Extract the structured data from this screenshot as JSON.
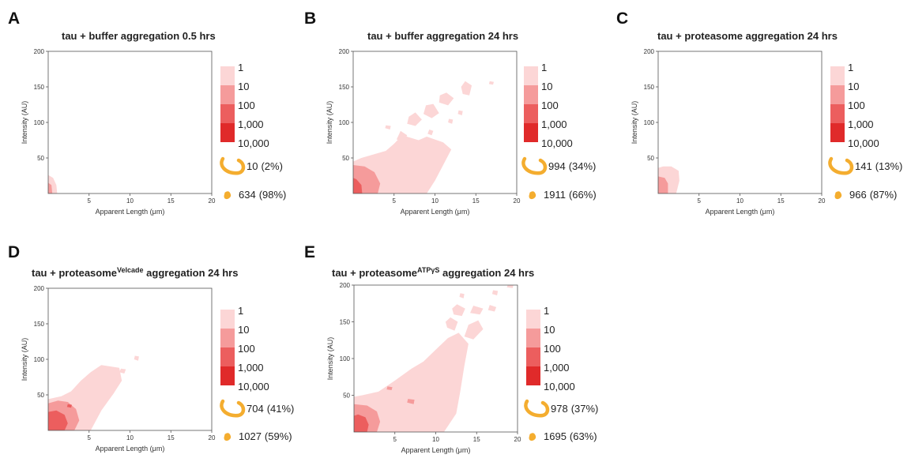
{
  "colors": {
    "bin_colors": [
      "#fcd6d6",
      "#f59b9b",
      "#ec5e5e",
      "#e02a2a"
    ],
    "fibril_icon": "#f4ad2f",
    "axis": "#555555"
  },
  "legend_labels": [
    "1",
    "10",
    "100",
    "1,000",
    "10,000"
  ],
  "fibril_icon_names": [
    "fibril-long-icon",
    "fibril-short-icon"
  ],
  "chart_data": [
    {
      "letter": "A",
      "title": "tau + buffer aggregation 0.5 hrs",
      "title_sup": "",
      "title_suffix": "",
      "type": "heatmap",
      "xlabel": "Apparent Length (μm)",
      "ylabel": "Intensity (AU)",
      "xlim": [
        0,
        20
      ],
      "ylim": [
        0,
        200
      ],
      "xticks": [
        "5",
        "10",
        "15",
        "20"
      ],
      "yticks": [
        "50",
        "100",
        "150",
        "200"
      ],
      "density_regions": [
        {
          "level": 1,
          "points": [
            [
              0,
              0
            ],
            [
              1.1,
              0
            ],
            [
              1.0,
              12
            ],
            [
              0.6,
              22
            ],
            [
              0,
              26
            ]
          ]
        },
        {
          "level": 2,
          "points": [
            [
              0,
              0
            ],
            [
              0.5,
              0
            ],
            [
              0.4,
              12
            ],
            [
              0,
              15
            ]
          ]
        }
      ],
      "long_fibrils": {
        "count": "10",
        "percent": "(2%)"
      },
      "short_fibrils": {
        "count": "634",
        "percent": "(98%)"
      }
    },
    {
      "letter": "B",
      "title": "tau + buffer aggregation 24 hrs",
      "title_sup": "",
      "title_suffix": "",
      "type": "heatmap",
      "xlabel": "Apparent Length (μm)",
      "ylabel": "Intensity (AU)",
      "xlim": [
        0,
        20
      ],
      "ylim": [
        0,
        200
      ],
      "xticks": [
        "5",
        "10",
        "15",
        "20"
      ],
      "yticks": [
        "50",
        "100",
        "150",
        "200"
      ],
      "density_regions": [
        {
          "level": 1,
          "points": [
            [
              0,
              0
            ],
            [
              9,
              0
            ],
            [
              10,
              18
            ],
            [
              11,
              40
            ],
            [
              12,
              62
            ],
            [
              11,
              72
            ],
            [
              9,
              80
            ],
            [
              8,
              75
            ],
            [
              6,
              82
            ],
            [
              5,
              70
            ],
            [
              4,
              60
            ],
            [
              2.5,
              55
            ],
            [
              1,
              50
            ],
            [
              0,
              45
            ]
          ]
        },
        {
          "level": 1,
          "points": [
            [
              6.6,
              98
            ],
            [
              7.6,
              95
            ],
            [
              8.4,
              104
            ],
            [
              7.6,
              114
            ],
            [
              6.8,
              108
            ]
          ]
        },
        {
          "level": 1,
          "points": [
            [
              8.6,
              112
            ],
            [
              9.6,
              106
            ],
            [
              10.5,
              113
            ],
            [
              9.8,
              126
            ],
            [
              8.9,
              124
            ]
          ]
        },
        {
          "level": 1,
          "points": [
            [
              10.5,
              128
            ],
            [
              11.6,
              124
            ],
            [
              12.3,
              134
            ],
            [
              11.4,
              142
            ],
            [
              10.6,
              138
            ]
          ]
        },
        {
          "level": 1,
          "points": [
            [
              5.3,
              76
            ],
            [
              6.3,
              74
            ],
            [
              6.6,
              82
            ],
            [
              5.8,
              88
            ]
          ]
        },
        {
          "level": 1,
          "points": [
            [
              13.4,
              140
            ],
            [
              14.2,
              138
            ],
            [
              14.5,
              152
            ],
            [
              13.7,
              158
            ],
            [
              13.2,
              150
            ]
          ]
        },
        {
          "level": 1,
          "points": [
            [
              9.1,
              84
            ],
            [
              9.6,
              82
            ],
            [
              9.8,
              88
            ],
            [
              9.3,
              90
            ]
          ]
        },
        {
          "level": 1,
          "points": [
            [
              12.8,
              112
            ],
            [
              13.3,
              110
            ],
            [
              13.4,
              116
            ],
            [
              12.9,
              117
            ]
          ]
        },
        {
          "level": 1,
          "points": [
            [
              3.9,
              92
            ],
            [
              4.5,
              90
            ],
            [
              4.6,
              95
            ],
            [
              4.0,
              96
            ]
          ]
        },
        {
          "level": 1,
          "points": [
            [
              11.6,
              100
            ],
            [
              12.1,
              98
            ],
            [
              12.2,
              104
            ],
            [
              11.7,
              105
            ]
          ]
        },
        {
          "level": 1,
          "points": [
            [
              16.6,
              154
            ],
            [
              17.1,
              153
            ],
            [
              17.2,
              157
            ],
            [
              16.7,
              158
            ]
          ]
        },
        {
          "level": 2,
          "points": [
            [
              0,
              0
            ],
            [
              3,
              0
            ],
            [
              3.3,
              14
            ],
            [
              2.6,
              30
            ],
            [
              1.4,
              38
            ],
            [
              0,
              40
            ]
          ]
        },
        {
          "level": 3,
          "points": [
            [
              0,
              0
            ],
            [
              1.1,
              0
            ],
            [
              1.0,
              12
            ],
            [
              0.4,
              20
            ],
            [
              0,
              22
            ]
          ]
        }
      ],
      "long_fibrils": {
        "count": "994",
        "percent": "(34%)"
      },
      "short_fibrils": {
        "count": "1911",
        "percent": "(66%)"
      }
    },
    {
      "letter": "C",
      "title": "tau + proteasome aggregation 24 hrs",
      "title_sup": "",
      "title_suffix": "",
      "type": "heatmap",
      "xlabel": "Apparent Length (μm)",
      "ylabel": "Intensity (AU)",
      "xlim": [
        0,
        20
      ],
      "ylim": [
        0,
        200
      ],
      "xticks": [
        "5",
        "10",
        "15",
        "20"
      ],
      "yticks": [
        "50",
        "100",
        "150",
        "200"
      ],
      "density_regions": [
        {
          "level": 1,
          "points": [
            [
              0,
              0
            ],
            [
              2.2,
              0
            ],
            [
              2.6,
              18
            ],
            [
              2.5,
              32
            ],
            [
              1.6,
              38
            ],
            [
              0.6,
              38
            ],
            [
              0,
              36
            ]
          ]
        },
        {
          "level": 2,
          "points": [
            [
              0,
              0
            ],
            [
              1.2,
              0
            ],
            [
              1.2,
              14
            ],
            [
              0.8,
              22
            ],
            [
              0,
              24
            ]
          ]
        }
      ],
      "long_fibrils": {
        "count": "141",
        "percent": "(13%)"
      },
      "short_fibrils": {
        "count": "966",
        "percent": "(87%)"
      }
    },
    {
      "letter": "D",
      "title": "tau + proteasome",
      "title_sup": "Velcade",
      "title_suffix": " aggregation 24 hrs",
      "type": "heatmap",
      "xlabel": "Apparent Length (μm)",
      "ylabel": "Intensity (AU)",
      "xlim": [
        0,
        20
      ],
      "ylim": [
        0,
        200
      ],
      "xticks": [
        "5",
        "10",
        "15",
        "20"
      ],
      "yticks": [
        "50",
        "100",
        "150",
        "200"
      ],
      "density_regions": [
        {
          "level": 1,
          "points": [
            [
              0,
              0
            ],
            [
              5.2,
              0
            ],
            [
              6.5,
              28
            ],
            [
              8,
              52
            ],
            [
              9,
              70
            ],
            [
              8.7,
              88
            ],
            [
              6.5,
              92
            ],
            [
              5.2,
              82
            ],
            [
              4,
              70
            ],
            [
              2.8,
              55
            ],
            [
              1.6,
              48
            ],
            [
              0,
              44
            ]
          ]
        },
        {
          "level": 1,
          "points": [
            [
              10.5,
              100
            ],
            [
              11,
              98
            ],
            [
              11.1,
              104
            ],
            [
              10.6,
              105
            ]
          ]
        },
        {
          "level": 1,
          "points": [
            [
              8.7,
              82
            ],
            [
              9.3,
              80
            ],
            [
              9.5,
              86
            ],
            [
              8.9,
              87
            ]
          ]
        },
        {
          "level": 2,
          "points": [
            [
              0,
              0
            ],
            [
              3.2,
              0
            ],
            [
              3.8,
              14
            ],
            [
              3.4,
              30
            ],
            [
              2.4,
              40
            ],
            [
              1.2,
              42
            ],
            [
              0,
              38
            ]
          ]
        },
        {
          "level": 3,
          "points": [
            [
              0,
              0
            ],
            [
              2,
              0
            ],
            [
              2.4,
              10
            ],
            [
              2.0,
              22
            ],
            [
              1.0,
              28
            ],
            [
              0,
              26
            ]
          ]
        },
        {
          "level": 3,
          "points": [
            [
              2.3,
              33
            ],
            [
              2.8,
              32
            ],
            [
              2.9,
              36
            ],
            [
              2.4,
              37
            ]
          ]
        }
      ],
      "long_fibrils": {
        "count": "704",
        "percent": "(41%)"
      },
      "short_fibrils": {
        "count": "1027",
        "percent": "(59%)"
      }
    },
    {
      "letter": "E",
      "title": "tau + proteasome",
      "title_sup": "ATPγS",
      "title_suffix": " aggregation 24 hrs",
      "type": "heatmap",
      "xlabel": "Apparent Length (μm)",
      "ylabel": "Intensity (AU)",
      "xlim": [
        0,
        20
      ],
      "ylim": [
        0,
        200
      ],
      "xticks": [
        "5",
        "10",
        "15",
        "20"
      ],
      "yticks": [
        "50",
        "100",
        "150",
        "200"
      ],
      "density_regions": [
        {
          "level": 1,
          "points": [
            [
              0,
              0
            ],
            [
              11,
              0
            ],
            [
              12.5,
              25
            ],
            [
              13,
              55
            ],
            [
              13.5,
              90
            ],
            [
              14,
              120
            ],
            [
              12.8,
              135
            ],
            [
              11.5,
              128
            ],
            [
              10,
              112
            ],
            [
              8.5,
              96
            ],
            [
              7,
              86
            ],
            [
              5,
              70
            ],
            [
              3,
              55
            ],
            [
              1,
              50
            ],
            [
              0,
              48
            ]
          ]
        },
        {
          "level": 1,
          "points": [
            [
              13.5,
              130
            ],
            [
              14.6,
              126
            ],
            [
              15.8,
              140
            ],
            [
              15.2,
              152
            ],
            [
              14,
              146
            ]
          ]
        },
        {
          "level": 1,
          "points": [
            [
              11.4,
              142
            ],
            [
              12.3,
              138
            ],
            [
              12.7,
              150
            ],
            [
              11.8,
              156
            ],
            [
              11.2,
              150
            ]
          ]
        },
        {
          "level": 1,
          "points": [
            [
              12.2,
              160
            ],
            [
              13.2,
              158
            ],
            [
              13.6,
              168
            ],
            [
              12.6,
              174
            ],
            [
              12,
              168
            ]
          ]
        },
        {
          "level": 1,
          "points": [
            [
              14.2,
              162
            ],
            [
              15.4,
              160
            ],
            [
              15.8,
              168
            ],
            [
              14.6,
              172
            ]
          ]
        },
        {
          "level": 1,
          "points": [
            [
              16.4,
              166
            ],
            [
              17.2,
              164
            ],
            [
              17.4,
              170
            ],
            [
              16.6,
              173
            ]
          ]
        },
        {
          "level": 1,
          "points": [
            [
              12.9,
              184
            ],
            [
              13.4,
              182
            ],
            [
              13.5,
              188
            ],
            [
              13.0,
              189
            ]
          ]
        },
        {
          "level": 1,
          "points": [
            [
              18.7,
              197
            ],
            [
              19.4,
              196
            ],
            [
              19.5,
              200
            ],
            [
              18.8,
              200
            ]
          ]
        },
        {
          "level": 1,
          "points": [
            [
              16.9,
              188
            ],
            [
              17.5,
              186
            ],
            [
              17.6,
              192
            ],
            [
              17.0,
              193
            ]
          ]
        },
        {
          "level": 2,
          "points": [
            [
              0,
              0
            ],
            [
              2.8,
              0
            ],
            [
              3.2,
              14
            ],
            [
              2.8,
              28
            ],
            [
              1.6,
              36
            ],
            [
              0,
              38
            ]
          ]
        },
        {
          "level": 2,
          "points": [
            [
              6.5,
              40
            ],
            [
              7.3,
              38
            ],
            [
              7.4,
              44
            ],
            [
              6.6,
              45
            ]
          ]
        },
        {
          "level": 2,
          "points": [
            [
              4.0,
              58
            ],
            [
              4.6,
              57
            ],
            [
              4.7,
              61
            ],
            [
              4.1,
              62
            ]
          ]
        },
        {
          "level": 3,
          "points": [
            [
              0,
              0
            ],
            [
              1.6,
              0
            ],
            [
              1.8,
              10
            ],
            [
              1.4,
              20
            ],
            [
              0.5,
              24
            ],
            [
              0,
              22
            ]
          ]
        }
      ],
      "long_fibrils": {
        "count": "978",
        "percent": "(37%)"
      },
      "short_fibrils": {
        "count": "1695",
        "percent": "(63%)"
      }
    }
  ]
}
